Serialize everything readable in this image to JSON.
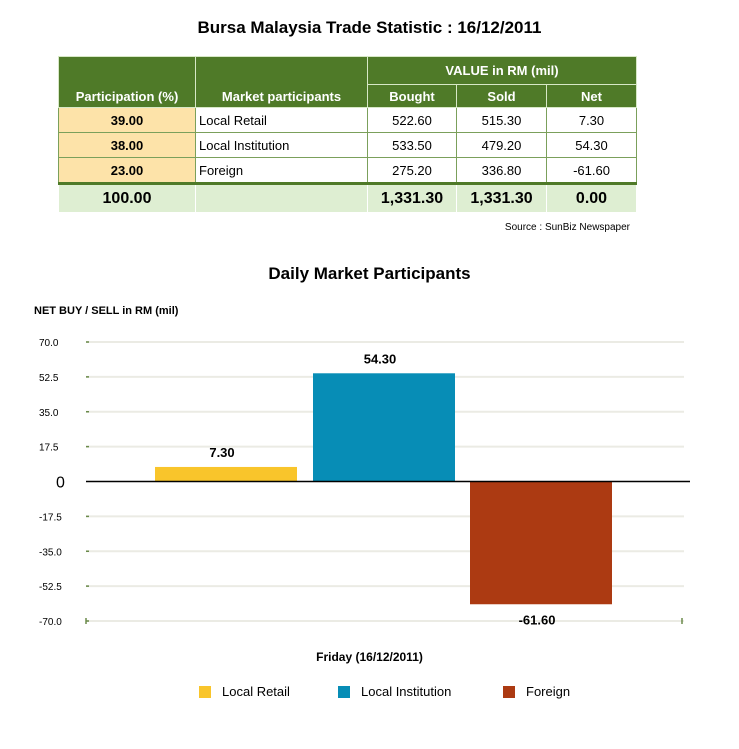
{
  "title": "Bursa Malaysia Trade Statistic : 16/12/2011",
  "table": {
    "headers": {
      "participation": "Participation (%)",
      "participants": "Market participants",
      "value_group": "VALUE in RM (mil)",
      "bought": "Bought",
      "sold": "Sold",
      "net": "Net"
    },
    "rows": [
      {
        "pct": "39.00",
        "name": "Local Retail",
        "bought": "522.60",
        "sold": "515.30",
        "net": "7.30"
      },
      {
        "pct": "38.00",
        "name": "Local Institution",
        "bought": "533.50",
        "sold": "479.20",
        "net": "54.30"
      },
      {
        "pct": "23.00",
        "name": "Foreign",
        "bought": "275.20",
        "sold": "336.80",
        "net": "-61.60"
      }
    ],
    "total": {
      "pct": "100.00",
      "name": "",
      "bought": "1,331.30",
      "sold": "1,331.30",
      "net": "0.00"
    }
  },
  "source": "Source : SunBiz Newspaper",
  "colors": {
    "header_green": "#4f7a28",
    "pct_fill": "#fde3a9",
    "total_fill": "#deeed2"
  },
  "chart_data": {
    "type": "bar",
    "title": "Daily Market Participants",
    "ylabel": "NET BUY / SELL in RM (mil)",
    "xlabel": "Friday (16/12/2011)",
    "categories": [
      "Friday (16/12/2011)"
    ],
    "ylim": [
      -70,
      70
    ],
    "yticks": [
      "70.0",
      "52.5",
      "35.0",
      "17.5",
      "0",
      "-17.5",
      "-35.0",
      "-52.5",
      "-70.0"
    ],
    "grid": true,
    "legend_position": "bottom",
    "series": [
      {
        "name": "Local Retail",
        "values": [
          7.3
        ],
        "label": "7.30",
        "color": "#f9c52b"
      },
      {
        "name": "Local Institution",
        "values": [
          54.3
        ],
        "label": "54.30",
        "color": "#078db6"
      },
      {
        "name": "Foreign",
        "values": [
          -61.6
        ],
        "label": "-61.60",
        "color": "#ac3a12"
      }
    ]
  }
}
